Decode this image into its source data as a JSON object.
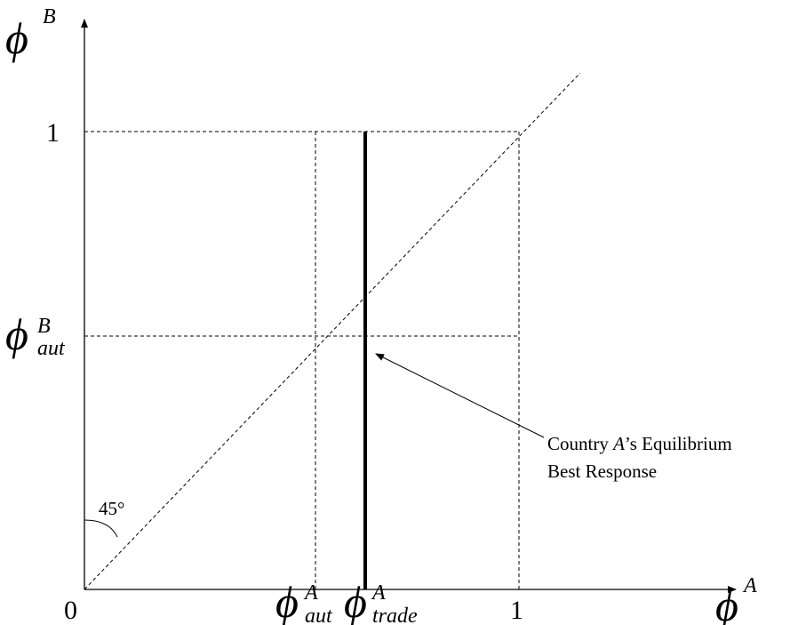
{
  "axes": {
    "y_symbol": "ϕ",
    "y_superscript": "B",
    "x_symbol": "ϕ",
    "x_superscript": "A",
    "origin_label": "0"
  },
  "ticks": {
    "y_one": "1",
    "x_one": "1",
    "y_aut_symbol": "ϕ",
    "y_aut_sub": "aut",
    "y_aut_sup": "B",
    "x_aut_symbol": "ϕ",
    "x_aut_sub": "aut",
    "x_aut_sup": "A",
    "x_trade_symbol": "ϕ",
    "x_trade_sub": "trade",
    "x_trade_sup": "A"
  },
  "angle_label": "45°",
  "annotation": {
    "line1_prefix": "Country ",
    "line1_italic": "A",
    "line1_suffix": "’s Equilibrium",
    "line2": "Best Response"
  }
}
